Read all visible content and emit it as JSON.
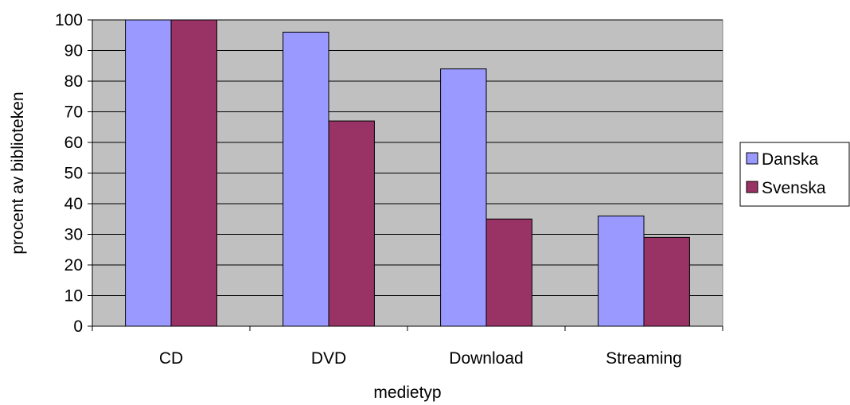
{
  "chart_data": {
    "type": "bar",
    "categories": [
      "CD",
      "DVD",
      "Download",
      "Streaming"
    ],
    "series": [
      {
        "name": "Danska",
        "values": [
          100,
          96,
          84,
          36
        ],
        "color": "#9999ff"
      },
      {
        "name": "Svenska",
        "values": [
          100,
          67,
          35,
          29
        ],
        "color": "#993366"
      }
    ],
    "xlabel": "medietyp",
    "ylabel": "procent av biblioteken",
    "ylim": [
      0,
      100
    ],
    "yticks": [
      0,
      10,
      20,
      30,
      40,
      50,
      60,
      70,
      80,
      90,
      100
    ],
    "grid": true,
    "legend_position": "right",
    "plot_background": "#c0c0c0"
  }
}
